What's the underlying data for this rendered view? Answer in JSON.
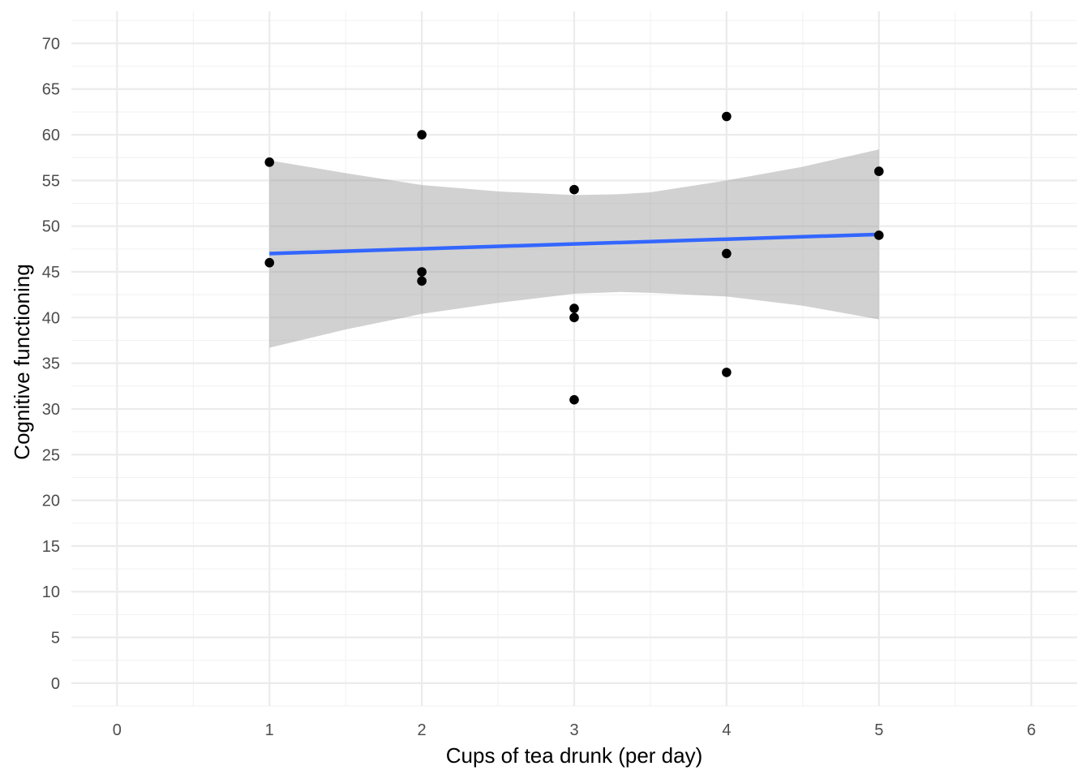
{
  "chart_data": {
    "type": "scatter",
    "title": "",
    "xlabel": "Cups of tea drunk (per day)",
    "ylabel": "Cognitive functioning",
    "xlim": [
      -0.3,
      6.3
    ],
    "ylim": [
      -2.5,
      73.5
    ],
    "x_ticks": [
      0,
      1,
      2,
      3,
      4,
      5,
      6
    ],
    "y_ticks": [
      0,
      5,
      10,
      15,
      20,
      25,
      30,
      35,
      40,
      45,
      50,
      55,
      60,
      65,
      70
    ],
    "grid": true,
    "points": [
      {
        "x": 1,
        "y": 57
      },
      {
        "x": 1,
        "y": 46
      },
      {
        "x": 2,
        "y": 60
      },
      {
        "x": 2,
        "y": 45
      },
      {
        "x": 2,
        "y": 44
      },
      {
        "x": 3,
        "y": 54
      },
      {
        "x": 3,
        "y": 41
      },
      {
        "x": 3,
        "y": 40
      },
      {
        "x": 3,
        "y": 31
      },
      {
        "x": 4,
        "y": 62
      },
      {
        "x": 4,
        "y": 47
      },
      {
        "x": 4,
        "y": 34
      },
      {
        "x": 5,
        "y": 56
      },
      {
        "x": 5,
        "y": 49
      }
    ],
    "fit_line": {
      "x": [
        1,
        5
      ],
      "y": [
        47.0,
        49.1
      ],
      "color": "#3366ff"
    },
    "confidence_band": {
      "color": "#999999",
      "x": [
        1.0,
        1.5,
        2.0,
        2.5,
        3.0,
        3.3,
        3.5,
        4.0,
        4.5,
        5.0
      ],
      "upper": [
        57.2,
        55.8,
        54.5,
        53.8,
        53.4,
        53.5,
        53.7,
        55.0,
        56.5,
        58.4
      ],
      "lower": [
        36.7,
        38.7,
        40.4,
        41.6,
        42.6,
        42.8,
        42.7,
        42.3,
        41.3,
        39.8
      ]
    }
  }
}
